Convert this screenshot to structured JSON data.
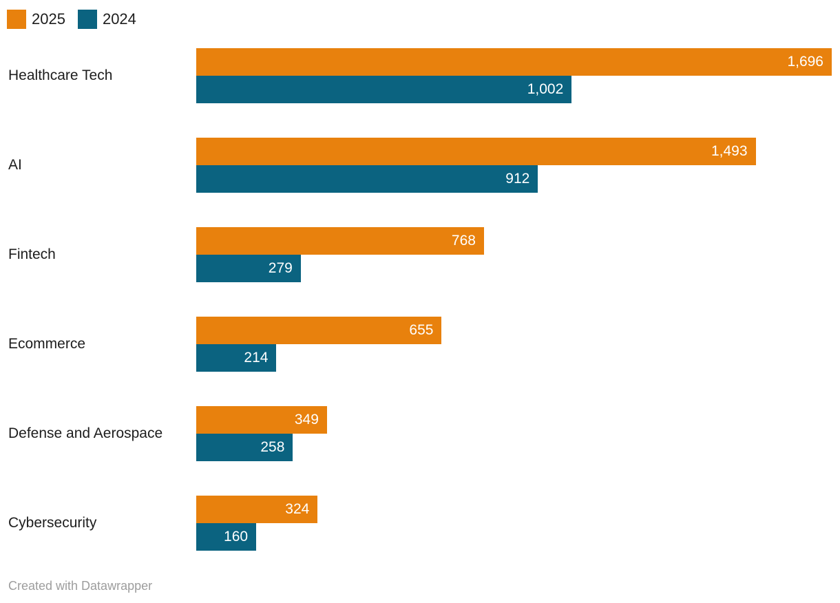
{
  "legend": {
    "items": [
      {
        "label": "2025",
        "color": "#E8810D"
      },
      {
        "label": "2024",
        "color": "#0B6380"
      }
    ]
  },
  "footer": {
    "text": "Created with Datawrapper"
  },
  "chart_data": {
    "type": "bar",
    "orientation": "horizontal",
    "title": "",
    "categories": [
      "Healthcare Tech",
      "AI",
      "Fintech",
      "Ecommerce",
      "Defense and Aerospace",
      "Cybersecurity"
    ],
    "series": [
      {
        "name": "2025",
        "color": "#E8810D",
        "values": [
          1696,
          1493,
          768,
          655,
          349,
          324
        ],
        "value_labels": [
          "1,696",
          "1,493",
          "768",
          "655",
          "349",
          "324"
        ]
      },
      {
        "name": "2024",
        "color": "#0B6380",
        "values": [
          1002,
          912,
          279,
          214,
          258,
          160
        ],
        "value_labels": [
          "1,002",
          "912",
          "279",
          "214",
          "258",
          "160"
        ]
      }
    ],
    "xlim": [
      0,
      1696
    ],
    "grid": false,
    "legend_position": "top-left",
    "value_label_position": "inside-end",
    "attribution": "Created with Datawrapper"
  }
}
